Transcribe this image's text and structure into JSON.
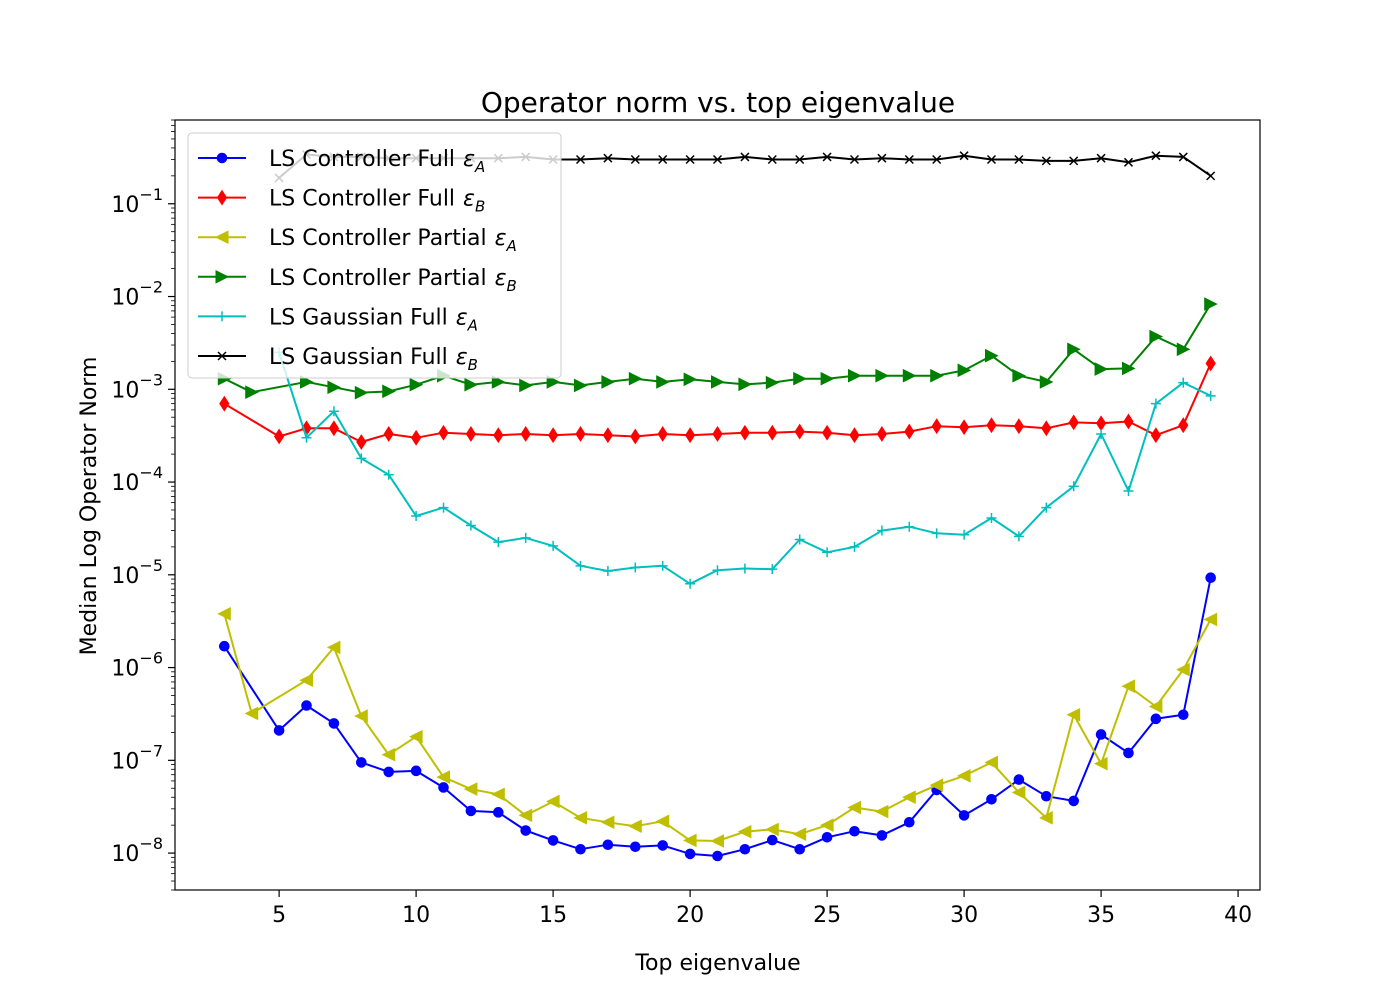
{
  "chart_data": {
    "type": "line",
    "title": "Operator norm vs. top eigenvalue",
    "xlabel": "Top eigenvalue",
    "ylabel": "Median Log Operator Norm",
    "xscale": "linear",
    "yscale": "log",
    "xlim": [
      1.2,
      40.8
    ],
    "ylim": [
      4e-09,
      0.8
    ],
    "x_ticks": [
      "5",
      "10",
      "15",
      "20",
      "25",
      "30",
      "35",
      "40"
    ],
    "y_ticks": [
      {
        "base": "10",
        "exp": "−1"
      },
      {
        "base": "10",
        "exp": "−2"
      },
      {
        "base": "10",
        "exp": "−3"
      },
      {
        "base": "10",
        "exp": "−4"
      },
      {
        "base": "10",
        "exp": "−5"
      },
      {
        "base": "10",
        "exp": "−6"
      },
      {
        "base": "10",
        "exp": "−7"
      },
      {
        "base": "10",
        "exp": "−8"
      }
    ],
    "grid": false,
    "legend_position": "top-left",
    "series": [
      {
        "name": "LS Controller Full",
        "subscript": "A",
        "color": "#0000ff",
        "marker": "circle",
        "x": [
          3,
          5,
          6,
          7,
          8,
          9,
          10,
          11,
          12,
          13,
          14,
          15,
          16,
          17,
          18,
          19,
          20,
          21,
          22,
          23,
          24,
          25,
          26,
          27,
          28,
          29,
          30,
          31,
          32,
          33,
          34,
          35,
          36,
          37,
          38,
          39
        ],
        "values": [
          1.7e-06,
          2.1e-07,
          3.9e-07,
          2.5e-07,
          9.5e-08,
          7.5e-08,
          7.7e-08,
          5.1e-08,
          2.85e-08,
          2.75e-08,
          1.75e-08,
          1.37e-08,
          1.1e-08,
          1.23e-08,
          1.17e-08,
          1.21e-08,
          9.8e-09,
          9.3e-09,
          1.1e-08,
          1.38e-08,
          1.1e-08,
          1.48e-08,
          1.72e-08,
          1.55e-08,
          2.15e-08,
          4.8e-08,
          2.55e-08,
          3.8e-08,
          6.2e-08,
          4.1e-08,
          3.65e-08,
          1.9e-07,
          1.2e-07,
          2.8e-07,
          3.1e-07,
          9.3e-06
        ]
      },
      {
        "name": "LS Controller Full",
        "subscript": "B",
        "color": "#ff0000",
        "marker": "diamond",
        "x": [
          3,
          5,
          6,
          7,
          8,
          9,
          10,
          11,
          12,
          13,
          14,
          15,
          16,
          17,
          18,
          19,
          20,
          21,
          22,
          23,
          24,
          25,
          26,
          27,
          28,
          29,
          30,
          31,
          32,
          33,
          34,
          35,
          36,
          37,
          38,
          39
        ],
        "values": [
          0.0007,
          0.00031,
          0.00038,
          0.00038,
          0.00027,
          0.00033,
          0.0003,
          0.00034,
          0.00033,
          0.00032,
          0.00033,
          0.00032,
          0.00033,
          0.00032,
          0.00031,
          0.00033,
          0.00032,
          0.00033,
          0.00034,
          0.00034,
          0.00035,
          0.00034,
          0.00032,
          0.00033,
          0.00035,
          0.0004,
          0.00039,
          0.00041,
          0.0004,
          0.00038,
          0.00044,
          0.00043,
          0.00045,
          0.00032,
          0.00041,
          0.0019
        ]
      },
      {
        "name": "LS Controller Partial",
        "subscript": "A",
        "color": "#bfbf00",
        "marker": "triangle-left",
        "x": [
          3,
          4,
          6,
          7,
          8,
          9,
          10,
          11,
          12,
          13,
          14,
          15,
          16,
          17,
          18,
          19,
          20,
          21,
          22,
          23,
          24,
          25,
          26,
          27,
          28,
          29,
          30,
          31,
          32,
          33,
          34,
          35,
          36,
          37,
          38,
          39
        ],
        "values": [
          3.8e-06,
          3.2e-07,
          7.3e-07,
          1.65e-06,
          3e-07,
          1.15e-07,
          1.8e-07,
          6.6e-08,
          4.9e-08,
          4.3e-08,
          2.55e-08,
          3.6e-08,
          2.4e-08,
          2.15e-08,
          1.95e-08,
          2.2e-08,
          1.37e-08,
          1.35e-08,
          1.7e-08,
          1.8e-08,
          1.6e-08,
          2e-08,
          3.1e-08,
          2.8e-08,
          4e-08,
          5.4e-08,
          6.8e-08,
          9.5e-08,
          4.5e-08,
          2.4e-08,
          3.1e-07,
          9.2e-08,
          6.3e-07,
          3.8e-07,
          9.5e-07,
          3.3e-06
        ]
      },
      {
        "name": "LS Controller Partial",
        "subscript": "B",
        "color": "#008000",
        "marker": "triangle-right",
        "x": [
          3,
          4,
          6,
          7,
          8,
          9,
          10,
          11,
          12,
          13,
          14,
          15,
          16,
          17,
          18,
          19,
          20,
          21,
          22,
          23,
          24,
          25,
          26,
          27,
          28,
          29,
          30,
          31,
          32,
          33,
          34,
          35,
          36,
          37,
          38,
          39
        ],
        "values": [
          0.0013,
          0.00093,
          0.0012,
          0.00105,
          0.00092,
          0.00095,
          0.00112,
          0.0014,
          0.00112,
          0.0012,
          0.0011,
          0.0012,
          0.0011,
          0.0012,
          0.0013,
          0.0012,
          0.00128,
          0.0012,
          0.00113,
          0.00118,
          0.0013,
          0.0013,
          0.0014,
          0.0014,
          0.0014,
          0.0014,
          0.0016,
          0.0023,
          0.0014,
          0.0012,
          0.0027,
          0.00165,
          0.00168,
          0.0037,
          0.0027,
          0.0083
        ]
      },
      {
        "name": "LS Gaussian Full",
        "subscript": "A",
        "color": "#00bfbf",
        "marker": "plus",
        "x": [
          5,
          6,
          7,
          8,
          9,
          10,
          11,
          12,
          13,
          14,
          15,
          16,
          17,
          18,
          19,
          20,
          21,
          22,
          23,
          24,
          25,
          26,
          27,
          28,
          29,
          30,
          31,
          32,
          33,
          34,
          35,
          36,
          37,
          38,
          39
        ],
        "values": [
          0.0025,
          0.0003,
          0.00058,
          0.00018,
          0.00012,
          4.3e-05,
          5.3e-05,
          3.4e-05,
          2.25e-05,
          2.5e-05,
          2.05e-05,
          1.25e-05,
          1.1e-05,
          1.2e-05,
          1.25e-05,
          8e-06,
          1.12e-05,
          1.17e-05,
          1.15e-05,
          2.4e-05,
          1.75e-05,
          2e-05,
          3e-05,
          3.3e-05,
          2.8e-05,
          2.7e-05,
          4.1e-05,
          2.6e-05,
          5.3e-05,
          9e-05,
          0.00033,
          8e-05,
          0.0007,
          0.00118,
          0.00085
        ]
      },
      {
        "name": "LS Gaussian Full",
        "subscript": "B",
        "color": "#000000",
        "marker": "x",
        "x": [
          5,
          6,
          7,
          8,
          9,
          10,
          11,
          12,
          13,
          14,
          15,
          16,
          17,
          18,
          19,
          20,
          21,
          22,
          23,
          24,
          25,
          26,
          27,
          28,
          29,
          30,
          31,
          32,
          33,
          34,
          35,
          36,
          37,
          38,
          39
        ],
        "values": [
          0.19,
          0.34,
          0.32,
          0.32,
          0.31,
          0.31,
          0.31,
          0.31,
          0.31,
          0.32,
          0.3,
          0.3,
          0.31,
          0.3,
          0.3,
          0.3,
          0.3,
          0.32,
          0.3,
          0.3,
          0.32,
          0.3,
          0.31,
          0.3,
          0.3,
          0.33,
          0.3,
          0.3,
          0.29,
          0.29,
          0.31,
          0.28,
          0.33,
          0.32,
          0.2
        ]
      }
    ]
  }
}
